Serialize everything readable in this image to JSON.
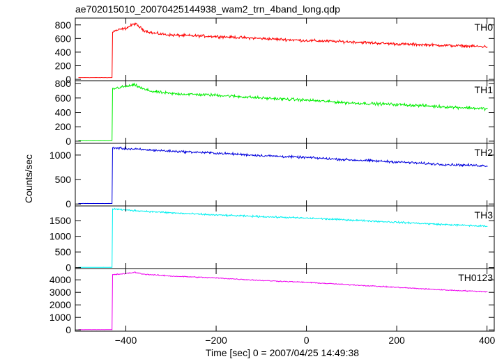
{
  "chart_data": {
    "type": "line",
    "title": "ae702015010_20070425144938_wam2_trn_4band_long.qdp",
    "xlabel": "Time [sec] 0 = 2007/04/25 14:49:38",
    "ylabel": "Counts/sec",
    "xlim": [
      -512,
      416
    ],
    "xticks": [
      "−400",
      "−200",
      "0",
      "200",
      "400"
    ],
    "panels": [
      {
        "name": "TH0",
        "color": "#ff0000",
        "ylim": [
          -20,
          900
        ],
        "yticks": [
          "0",
          "200",
          "400",
          "600",
          "800"
        ],
        "baseline": 25,
        "onset": -430,
        "curve": {
          "x": [
            -430,
            -420,
            -400,
            -380,
            -360,
            -340,
            -300,
            -200,
            -100,
            0,
            100,
            200,
            300,
            400
          ],
          "y": [
            700,
            720,
            750,
            820,
            720,
            680,
            650,
            630,
            600,
            570,
            550,
            520,
            500,
            480
          ]
        },
        "noise": 30
      },
      {
        "name": "TH1",
        "color": "#00ee00",
        "ylim": [
          -30,
          840
        ],
        "yticks": [
          "0",
          "200",
          "400",
          "600",
          "800"
        ],
        "baseline": 10,
        "onset": -430,
        "curve": {
          "x": [
            -430,
            -420,
            -400,
            -380,
            -360,
            -340,
            -300,
            -200,
            -100,
            0,
            100,
            200,
            300,
            400
          ],
          "y": [
            720,
            740,
            760,
            780,
            720,
            690,
            660,
            640,
            600,
            570,
            530,
            510,
            480,
            450
          ]
        },
        "noise": 30
      },
      {
        "name": "TH2",
        "color": "#0000dd",
        "ylim": [
          -40,
          1240
        ],
        "yticks": [
          "0",
          "500",
          "1000"
        ],
        "baseline": 10,
        "onset": -430,
        "curve": {
          "x": [
            -430,
            -400,
            -300,
            -200,
            -100,
            0,
            100,
            200,
            300,
            400
          ],
          "y": [
            1150,
            1130,
            1080,
            1040,
            990,
            950,
            900,
            860,
            810,
            780
          ]
        },
        "noise": 35
      },
      {
        "name": "TH3",
        "color": "#00f0f0",
        "ylim": [
          -30,
          1970
        ],
        "yticks": [
          "0",
          "500",
          "1000",
          "1500"
        ],
        "baseline": 10,
        "onset": -430,
        "curve": {
          "x": [
            -430,
            -400,
            -300,
            -200,
            -100,
            0,
            100,
            200,
            300,
            400
          ],
          "y": [
            1880,
            1840,
            1750,
            1680,
            1630,
            1580,
            1520,
            1450,
            1380,
            1320
          ]
        },
        "noise": 40
      },
      {
        "name": "TH0123",
        "color": "#ee00ee",
        "ylim": [
          -100,
          4900
        ],
        "yticks": [
          "0",
          "1000",
          "2000",
          "3000",
          "4000"
        ],
        "baseline": 20,
        "onset": -430,
        "curve": {
          "x": [
            -430,
            -400,
            -380,
            -360,
            -300,
            -200,
            -100,
            0,
            100,
            200,
            300,
            400
          ],
          "y": [
            4400,
            4500,
            4600,
            4450,
            4300,
            4150,
            3950,
            3800,
            3600,
            3400,
            3200,
            3050
          ]
        },
        "noise": 60
      }
    ]
  }
}
